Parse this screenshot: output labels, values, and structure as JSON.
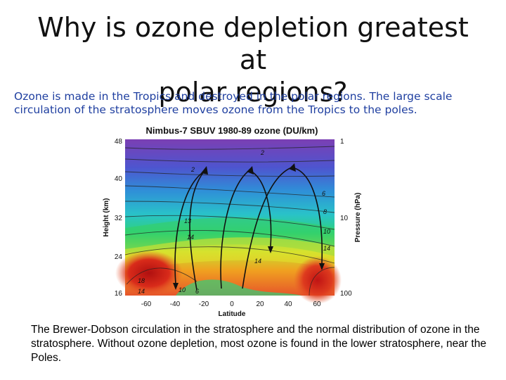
{
  "slide": {
    "title_line1": "Why is ozone depletion greatest at",
    "title_line2": "polar regions?",
    "intro_line1": "Ozone is made in the Tropics and destroyed in the polar regions. The large scale",
    "intro_line2": "circulation of the stratosphere moves ozone from the Tropics to the poles.",
    "caption": "The Brewer-Dobson circulation in the stratosphere and the normal distribution of ozone in the stratosphere. Without ozone depletion, most ozone is found in the lower stratosphere, near the Poles."
  },
  "figure": {
    "title": "Nimbus-7 SBUV 1980-89 ozone (DU/km)",
    "xlabel": "Latitude",
    "ylabel_left": "Height (km)",
    "ylabel_right": "Pressure (hPa)",
    "x_ticks": [
      "-60",
      "-40",
      "-20",
      "0",
      "20",
      "40",
      "60"
    ],
    "y_ticks_left": [
      "48",
      "40",
      "32",
      "24",
      "16"
    ],
    "y_ticks_right": [
      "1",
      "10",
      "100"
    ],
    "contour_labels": [
      "2",
      "6",
      "8",
      "10",
      "13",
      "14",
      "14",
      "14",
      "18",
      "14",
      "10",
      "6",
      "2"
    ],
    "colors": {
      "top": "#7b3fb3",
      "mid": "#2f8fd8",
      "band": "#2fd27a",
      "yellow": "#e4e32c",
      "orange": "#f28a1f",
      "red": "#c81818"
    }
  }
}
